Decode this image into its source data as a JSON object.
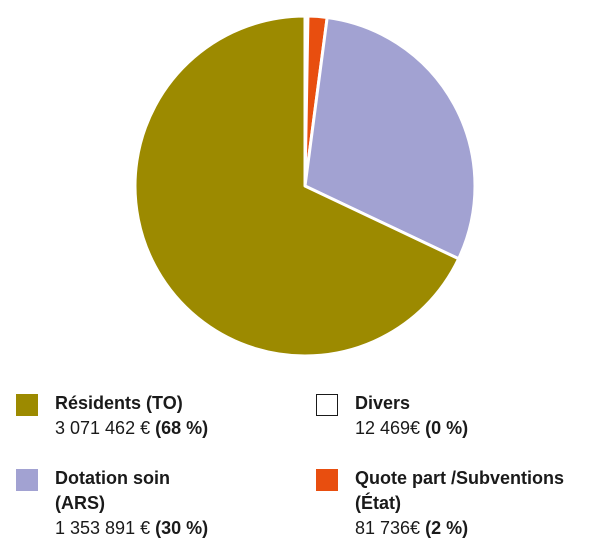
{
  "chart_data": {
    "type": "pie",
    "series": [
      {
        "name": "Résidents (TO)",
        "amount": "3 071 462 €",
        "percent_label": "68 %",
        "value": 3071462,
        "color": "#9c8a00"
      },
      {
        "name": "Dotation soin (ARS)",
        "amount": "1 353 891 €",
        "percent_label": "30 %",
        "value": 1353891,
        "color": "#a2a2d2"
      },
      {
        "name": "Divers",
        "amount": "12 469€",
        "percent_label": "0 %",
        "value": 12469,
        "color": "#ffffff"
      },
      {
        "name": "Quote part /Subventions (État)",
        "amount": "81 736€",
        "percent_label": "2 %",
        "value": 81736,
        "color": "#e84e0f"
      }
    ]
  }
}
